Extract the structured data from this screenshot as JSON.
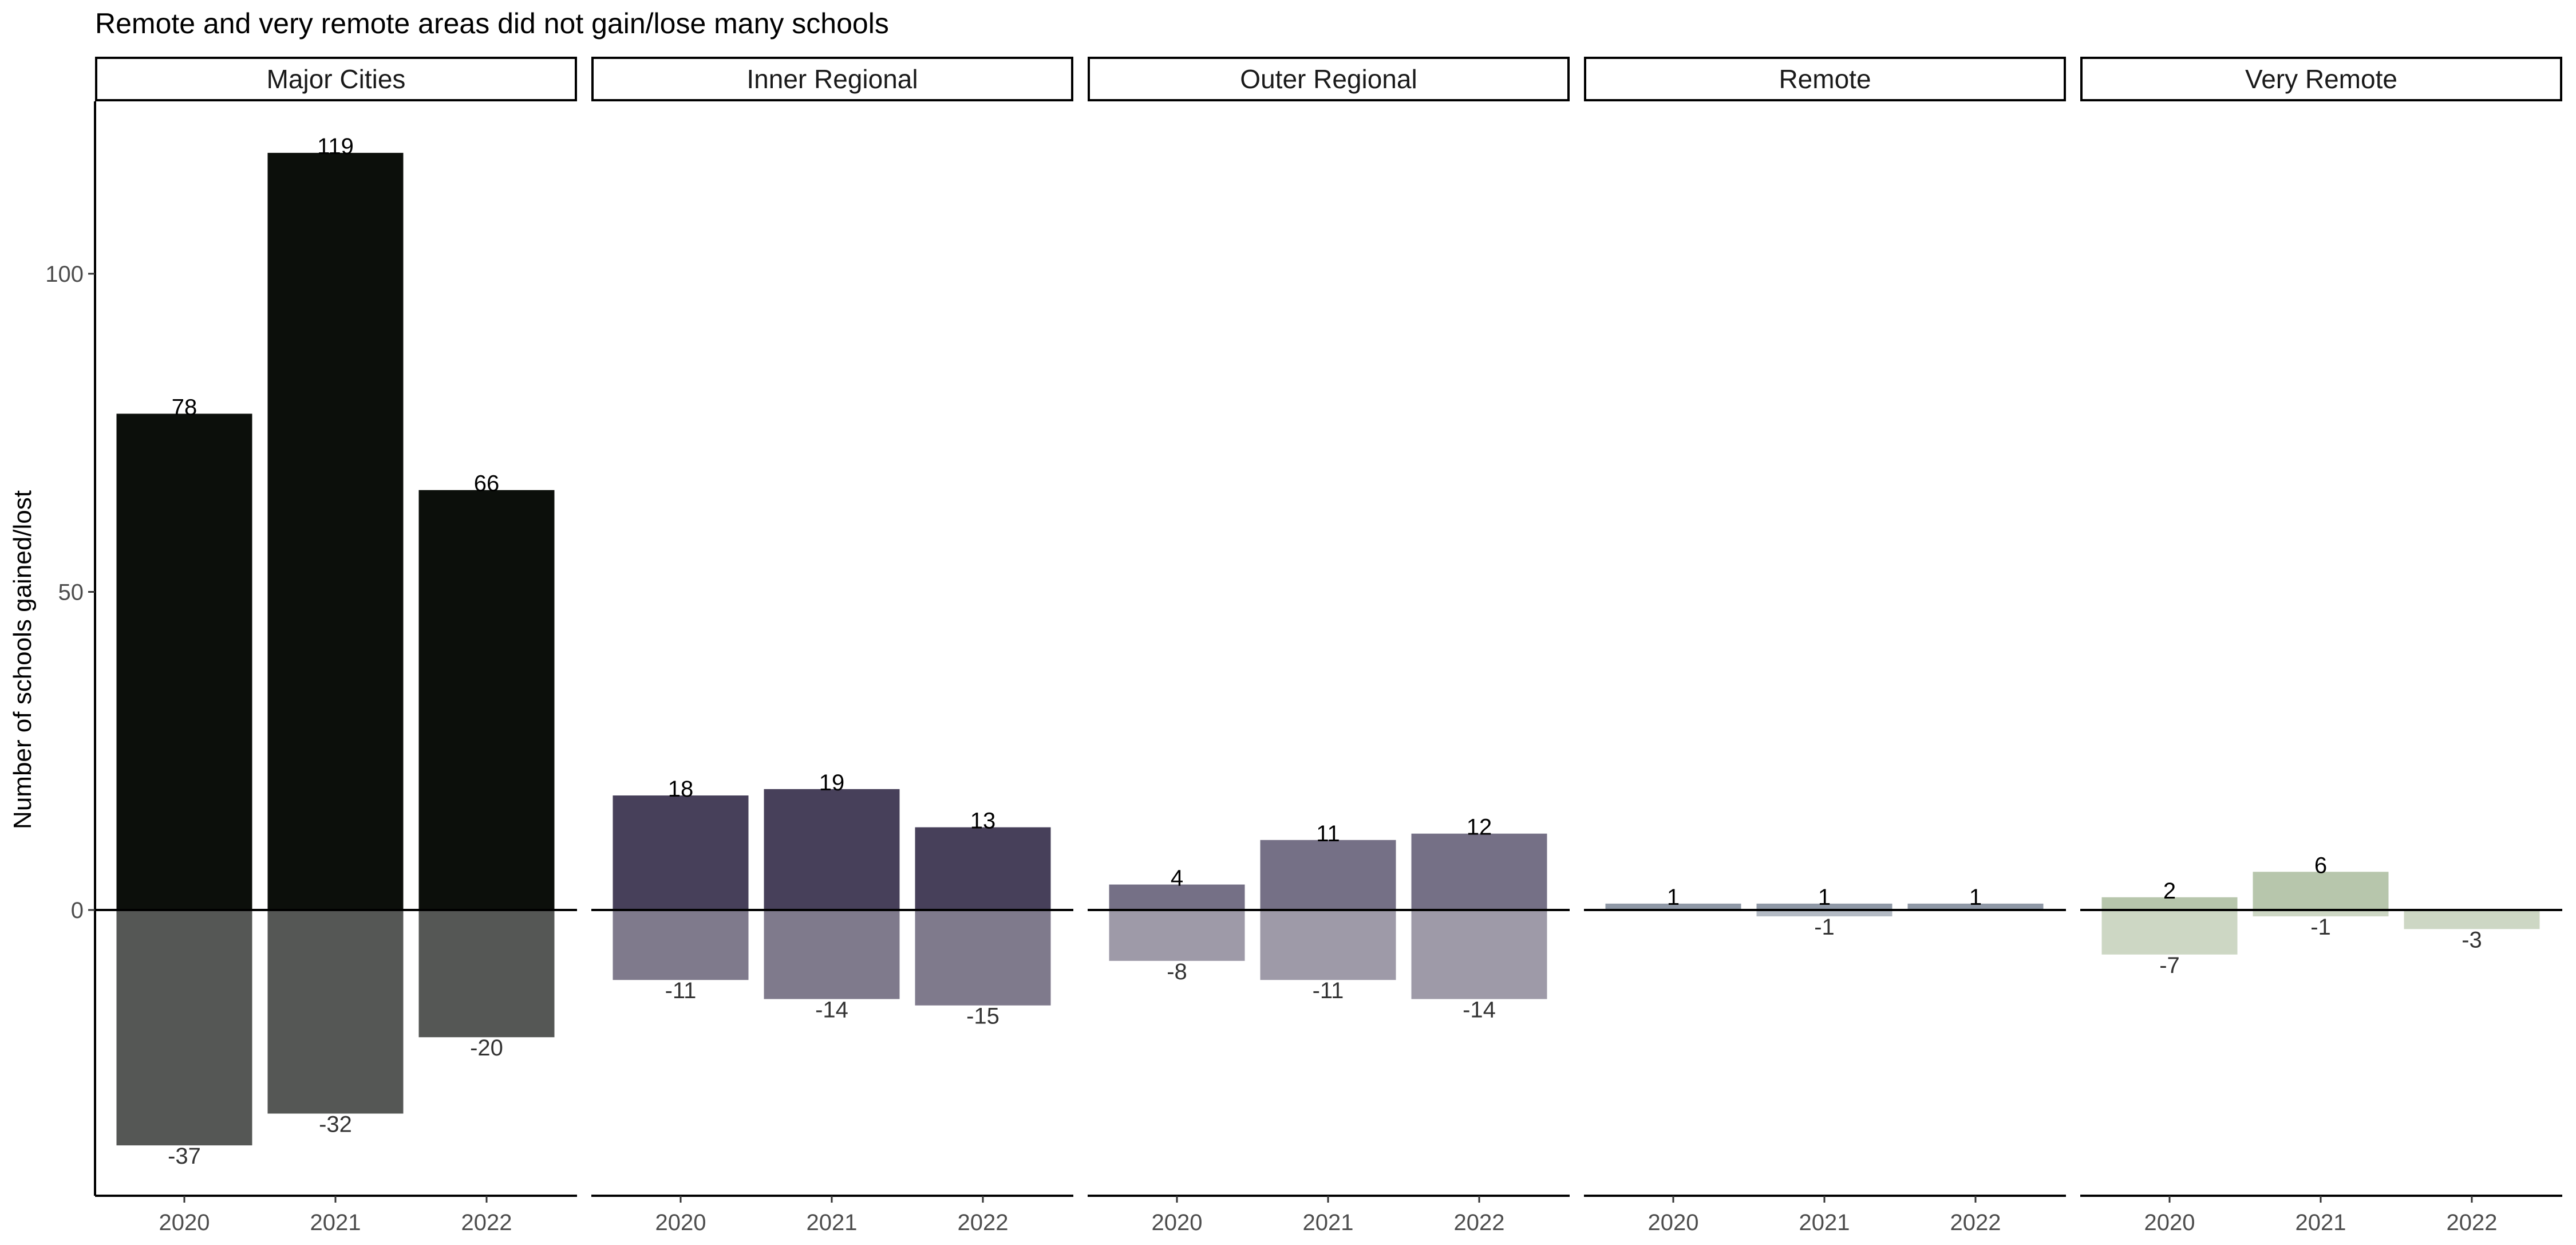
{
  "chart_data": {
    "type": "bar",
    "title": "Remote and very remote areas did not gain/lose many schools",
    "ylabel": "Number of schools gained/lost",
    "xlabel": "",
    "ylim": [
      -45,
      127
    ],
    "yticks": [
      0,
      50,
      100
    ],
    "categories": [
      "2020",
      "2021",
      "2022"
    ],
    "panels": [
      {
        "name": "Major Cities",
        "gained": [
          78,
          119,
          66
        ],
        "lost": [
          -37,
          -32,
          -20
        ],
        "gained_color": "#0c0f0b",
        "lost_color": "#555755"
      },
      {
        "name": "Inner Regional",
        "gained": [
          18,
          19,
          13
        ],
        "lost": [
          -11,
          -14,
          -15
        ],
        "gained_color": "#47405a",
        "lost_color": "#7f7a8c"
      },
      {
        "name": "Outer Regional",
        "gained": [
          4,
          11,
          12
        ],
        "lost": [
          -8,
          -11,
          -14
        ],
        "gained_color": "#757086",
        "lost_color": "#9e9aa8"
      },
      {
        "name": "Remote",
        "gained": [
          1,
          1,
          1
        ],
        "lost": [
          null,
          -1,
          null
        ],
        "gained_color": "#8f98a6",
        "lost_color": "#b3bac4"
      },
      {
        "name": "Very Remote",
        "gained": [
          2,
          6,
          null
        ],
        "lost": [
          -7,
          -1,
          -3
        ],
        "gained_color": "#b7c6ac",
        "lost_color": "#cdd7c4"
      }
    ],
    "grid": false,
    "legend": "none"
  }
}
